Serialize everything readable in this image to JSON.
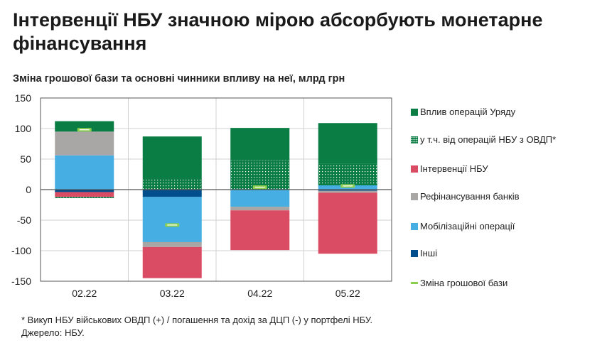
{
  "title": "Інтервенції НБУ значною мірою абсорбують монетарне фінансування",
  "subtitle": "Зміна грошової бази та основні чинники впливу на неї, млрд грн",
  "footnote": "* Викуп НБУ військових ОВДП (+) / погашення та дохід за ДЦП (-) у портфелі НБУ.",
  "source": "Джерело: НБУ.",
  "chart_data": {
    "type": "bar",
    "stacked": true,
    "title": "Зміна грошової бази та основні чинники впливу на неї, млрд грн",
    "ylim": [
      -150,
      150
    ],
    "yticks": [
      "150",
      "100",
      "50",
      "0",
      "-50",
      "-100",
      "-150"
    ],
    "ytick_values": [
      150,
      100,
      50,
      0,
      -50,
      -100,
      -150
    ],
    "categories": [
      "02.22",
      "03.22",
      "04.22",
      "05.22"
    ],
    "legend_position": "right",
    "series": [
      {
        "key": "gov",
        "name": "Вплив операцій Уряду",
        "color": "#0a7d45",
        "pattern": "solid"
      },
      {
        "key": "ovdp",
        "name": "у т.ч. від операцій НБУ з ОВДП*",
        "color": "#0a7d45",
        "pattern": "dotted"
      },
      {
        "key": "interv",
        "name": "Інтервенції НБУ",
        "color": "#d94c63",
        "pattern": "solid"
      },
      {
        "key": "refin",
        "name": "Рефінансування банків",
        "color": "#a9a7a6",
        "pattern": "solid"
      },
      {
        "key": "mobil",
        "name": "Мобілізаційні операції",
        "color": "#47aee3",
        "pattern": "solid"
      },
      {
        "key": "other",
        "name": "Інші",
        "color": "#004f8c",
        "pattern": "solid"
      },
      {
        "key": "mb",
        "name": "Зміна грошової бази",
        "color": "#8ccf4f",
        "pattern": "line"
      }
    ],
    "segments": [
      [
        {
          "series": "mobil",
          "from": 0,
          "to": 56
        },
        {
          "series": "refin",
          "from": 56,
          "to": 95
        },
        {
          "series": "gov",
          "from": 95,
          "to": 112
        },
        {
          "series": "other",
          "from": 0,
          "to": -4
        },
        {
          "series": "interv",
          "from": -4,
          "to": -12
        },
        {
          "series": "ovdp",
          "from": -12,
          "to": -14
        }
      ],
      [
        {
          "series": "ovdp",
          "from": 0,
          "to": 18
        },
        {
          "series": "gov",
          "from": 18,
          "to": 87
        },
        {
          "series": "other",
          "from": 0,
          "to": -12
        },
        {
          "series": "mobil",
          "from": -12,
          "to": -86
        },
        {
          "series": "refin",
          "from": -86,
          "to": -94
        },
        {
          "series": "interv",
          "from": -94,
          "to": -145
        }
      ],
      [
        {
          "series": "ovdp",
          "from": 0,
          "to": 48
        },
        {
          "series": "gov",
          "from": 48,
          "to": 101
        },
        {
          "series": "mobil",
          "from": 0,
          "to": -28
        },
        {
          "series": "refin",
          "from": -28,
          "to": -34
        },
        {
          "series": "interv",
          "from": -34,
          "to": -99
        }
      ],
      [
        {
          "series": "mobil",
          "from": 0,
          "to": 7
        },
        {
          "series": "ovdp",
          "from": 7,
          "to": 42
        },
        {
          "series": "gov",
          "from": 42,
          "to": 109
        },
        {
          "series": "other",
          "from": 0,
          "to": -2
        },
        {
          "series": "refin",
          "from": -2,
          "to": -5
        },
        {
          "series": "interv",
          "from": -5,
          "to": -105
        }
      ]
    ],
    "monetary_base_change": [
      98,
      -58,
      4,
      6
    ]
  }
}
